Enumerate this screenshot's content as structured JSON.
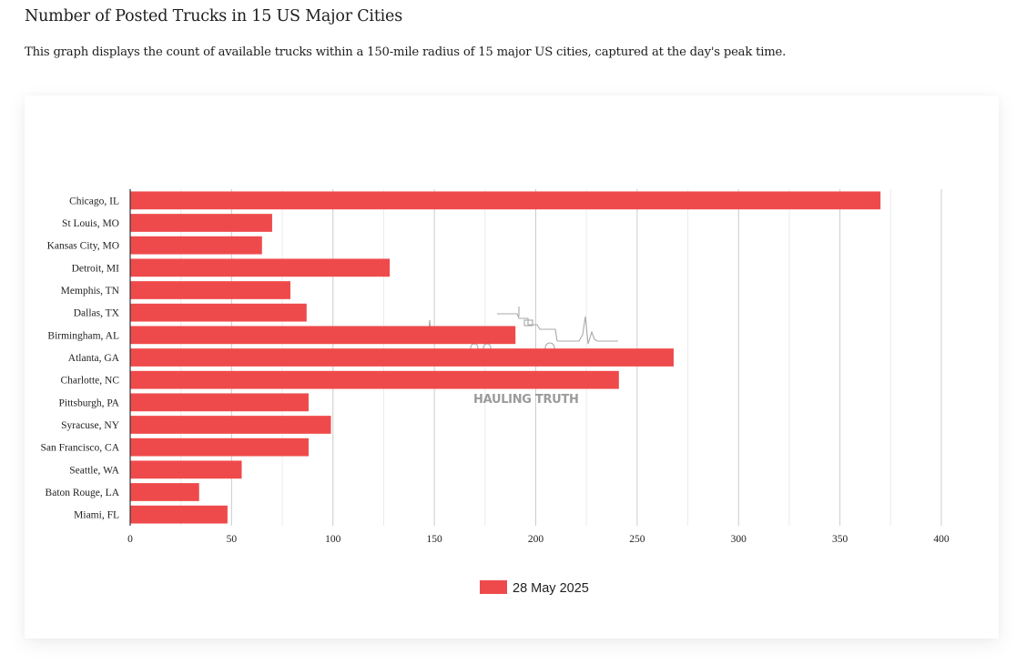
{
  "page": {
    "title": "Number of Posted Trucks in 15 US Major Cities",
    "description": "This graph displays the count of available trucks within a 150-mile radius of 15 major US cities, captured at the day's peak time."
  },
  "watermark": {
    "text": "HAULING TRUTH",
    "icon": "truck-heartbeat-icon"
  },
  "chart_data": {
    "type": "bar",
    "orientation": "horizontal",
    "title": "",
    "xlabel": "",
    "ylabel": "",
    "categories": [
      "Chicago, IL",
      "St Louis, MO",
      "Kansas City, MO",
      "Detroit, MI",
      "Memphis, TN",
      "Dallas, TX",
      "Birmingham, AL",
      "Atlanta, GA",
      "Charlotte, NC",
      "Pittsburgh, PA",
      "Syracuse, NY",
      "San Francisco, CA",
      "Seattle, WA",
      "Baton Rouge, LA",
      "Miami, FL"
    ],
    "series": [
      {
        "name": "28 May 2025",
        "color": "#ef4a4b",
        "values": [
          370,
          70,
          65,
          128,
          79,
          87,
          190,
          268,
          241,
          88,
          99,
          88,
          55,
          34,
          48
        ]
      }
    ],
    "xlim": [
      0,
      400
    ],
    "xticks": [
      0,
      50,
      100,
      150,
      200,
      250,
      300,
      350,
      400
    ],
    "xtick_labels": [
      "0",
      "50",
      "100",
      "150",
      "200",
      "250",
      "300",
      "350",
      "400"
    ],
    "minor_grid_step": 25,
    "grid": true,
    "legend": {
      "position": "bottom-center",
      "entries": [
        "28 May 2025"
      ]
    },
    "colors": {
      "gridline": "#cccccc",
      "minor_gridline": "#ebebeb",
      "axis": "#333333"
    }
  }
}
